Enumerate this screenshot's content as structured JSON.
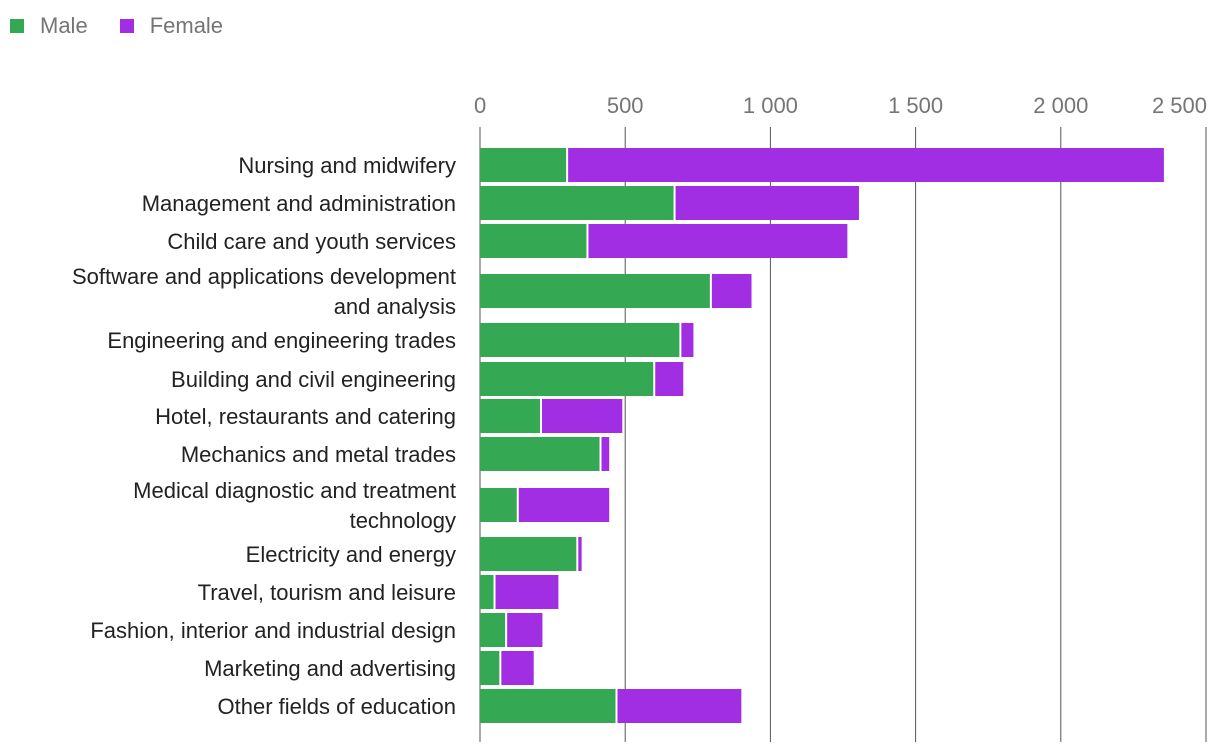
{
  "legend": {
    "male_label": "Male",
    "female_label": "Female"
  },
  "colors": {
    "male": "#34a853",
    "female": "#a12ee3",
    "grid": "#555555",
    "axis_text": "#757575",
    "label_text": "#222222"
  },
  "chart_data": {
    "type": "bar",
    "orientation": "horizontal",
    "stacked": true,
    "title": "",
    "xlabel": "",
    "ylabel": "",
    "xlim": [
      0,
      2500
    ],
    "xticks": [
      0,
      500,
      1000,
      1500,
      2000,
      2500
    ],
    "xtick_labels": [
      "0",
      "500",
      "1 000",
      "1 500",
      "2 000",
      "2 500"
    ],
    "legend_position": "top-left",
    "grid": true,
    "categories": [
      [
        "Nursing and midwifery"
      ],
      [
        "Management and administration"
      ],
      [
        "Child care and youth services"
      ],
      [
        "Software and applications development",
        "and analysis"
      ],
      [
        "Engineering and engineering trades"
      ],
      [
        "Building and civil engineering"
      ],
      [
        "Hotel, restaurants and catering"
      ],
      [
        "Mechanics and metal trades"
      ],
      [
        "Medical diagnostic and treatment",
        "technology"
      ],
      [
        "Electricity and energy"
      ],
      [
        "Travel, tourism and leisure"
      ],
      [
        "Fashion, interior and industrial design"
      ],
      [
        "Marketing and advertising"
      ],
      [
        "Other fields of education"
      ]
    ],
    "series": [
      {
        "name": "Male",
        "values": [
          300,
          670,
          370,
          795,
          690,
          600,
          210,
          415,
          130,
          335,
          50,
          90,
          70,
          470
        ]
      },
      {
        "name": "Female",
        "values": [
          2055,
          635,
          895,
          140,
          45,
          100,
          280,
          30,
          315,
          15,
          220,
          125,
          115,
          430
        ]
      }
    ]
  }
}
